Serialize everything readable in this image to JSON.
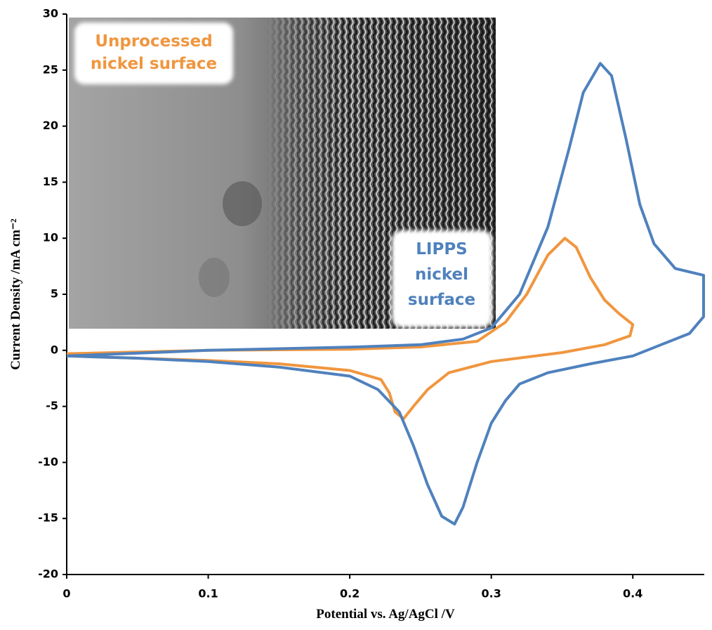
{
  "chart_data": {
    "type": "line",
    "x_label": "Potential vs. Ag/AgCl /V",
    "y_label": "Current Density /mA cm⁻²",
    "xlim": [
      0,
      0.45
    ],
    "xticks": [
      0,
      0.1,
      0.2,
      0.3,
      0.4
    ],
    "ylim": [
      -20,
      30
    ],
    "yticks": [
      -20,
      -15,
      -10,
      -5,
      0,
      5,
      10,
      15,
      20,
      25,
      30
    ],
    "grid": false,
    "annotations": [
      {
        "lines": [
          "Unprocessed",
          "nickel surface"
        ],
        "color": "#f0963f"
      },
      {
        "lines": [
          "LIPPS",
          "nickel",
          "surface"
        ],
        "color": "#4f81bd"
      }
    ],
    "series": [
      {
        "color": "#f0963f",
        "x": [
          0,
          0.1,
          0.2,
          0.25,
          0.29,
          0.31,
          0.325,
          0.34,
          0.352,
          0.36,
          0.37,
          0.38,
          0.39,
          0.4,
          0.398,
          0.38,
          0.35,
          0.3,
          0.27,
          0.255,
          0.245,
          0.238,
          0.232,
          0.228,
          0.222,
          0.2,
          0.15,
          0.1,
          0.05,
          0
        ],
        "values": [
          -0.3,
          0,
          0.1,
          0.3,
          0.8,
          2.5,
          5,
          8.5,
          10,
          9.2,
          6.5,
          4.5,
          3.3,
          2.3,
          1.3,
          0.5,
          -0.2,
          -1,
          -2,
          -3.5,
          -5,
          -6.1,
          -5.5,
          -3.8,
          -2.6,
          -1.8,
          -1.2,
          -0.9,
          -0.7,
          -0.5
        ]
      },
      {
        "color": "#4f81bd",
        "x": [
          0,
          0.1,
          0.205,
          0.25,
          0.28,
          0.3,
          0.32,
          0.34,
          0.355,
          0.365,
          0.377,
          0.385,
          0.395,
          0.405,
          0.415,
          0.43,
          0.45,
          0.45,
          0.44,
          0.42,
          0.4,
          0.37,
          0.34,
          0.32,
          0.31,
          0.3,
          0.29,
          0.28,
          0.274,
          0.265,
          0.255,
          0.245,
          0.235,
          0.22,
          0.2,
          0.15,
          0.1,
          0.05,
          0
        ],
        "values": [
          -0.5,
          0,
          0.3,
          0.5,
          1,
          2,
          5,
          11,
          18,
          23,
          25.6,
          24.5,
          19,
          13,
          9.5,
          7.3,
          6.7,
          3,
          1.5,
          0.5,
          -0.5,
          -1.2,
          -2,
          -3,
          -4.5,
          -6.5,
          -10,
          -14,
          -15.5,
          -14.8,
          -12,
          -8.5,
          -5.5,
          -3.5,
          -2.3,
          -1.5,
          -1,
          -0.7,
          -0.5
        ]
      }
    ]
  }
}
